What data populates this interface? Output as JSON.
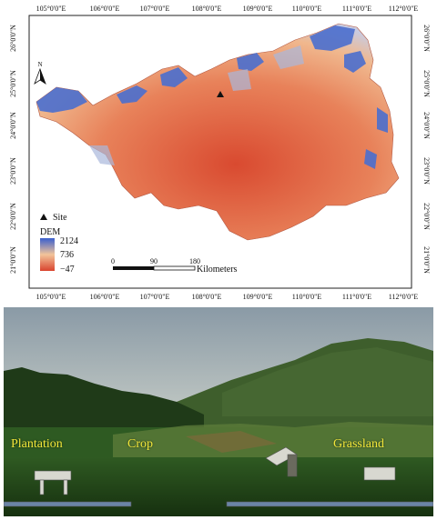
{
  "map": {
    "lon_labels": [
      "105°0'0\"E",
      "106°0'0\"E",
      "107°0'0\"E",
      "108°0'0\"E",
      "109°0'0\"E",
      "110°0'0\"E",
      "111°0'0\"E",
      "112°0'0\"E"
    ],
    "lat_labels": [
      "26°0'0\"N",
      "25°0'0\"N",
      "24°0'0\"N",
      "23°0'0\"N",
      "22°0'0\"N",
      "21°0'0\"N"
    ],
    "north_label": "N",
    "legend": {
      "site_label": "Site",
      "dem_title": "DEM",
      "dem_max": "2124",
      "dem_mid": "736",
      "dem_min": "−47",
      "color_high": "#3a5fcd",
      "color_mid": "#f2c49a",
      "color_low": "#d9432e"
    },
    "scale_bar": {
      "ticks": [
        "0",
        "90",
        "180"
      ],
      "unit": "Kilometers"
    }
  },
  "photo": {
    "labels": {
      "plantation": "Plantation",
      "crop": "Crop",
      "grassland": "Grassland"
    }
  }
}
